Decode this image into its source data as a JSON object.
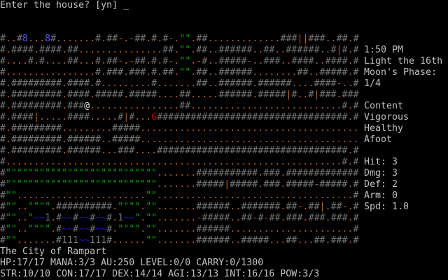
{
  "prompt": {
    "text": "Enter the house? [yn] ",
    "cursor": "_"
  },
  "sidebar": {
    "time": "1:50 PM",
    "date": "Light the 16th",
    "moon_label": "Moon's Phase:",
    "moon_value": "1/4",
    "status": [
      "Content",
      "Vigorous",
      "Healthy",
      "Afoot"
    ],
    "combat": [
      "Hit: 3",
      "Dmg: 3",
      "Def: 2",
      "Arm: 0",
      "Spd: 1.0"
    ]
  },
  "location": "The City of Rampart",
  "status_line_1": "HP:17/17 MANA:3/3 AU:250 LEVEL:0/0 CARRY:0/1300",
  "status_line_2": "STR:10/10 CON:17/17 DEX:14/14 AGI:13/13 INT:16/16 POW:3/3",
  "tile_colors": {
    "#": "#767676",
    ".": "#b8601c",
    "\"": "#00a800",
    "8": "#5a5aff",
    "|": "#b8601c",
    "-": "#b8601c",
    "@": "#e0e0e0",
    "G": "#b00000",
    "1": "#767676",
    "~": "#1a1ad0"
  },
  "map": [
    "#..#8...8#.......#.##-.-##.#.#-.\"\".##.............###||###..##.#",
    "#.####.####.##...............##.\"\".##..######..##..######..#|#.#",
    "#....#.#....##...#.##-.-##.#.#-.\"\".-#..#####-..###..####..####.#",
    "#................#.###.###.#.##.\"\".##..######........##..#####.#",
    "#.#########.####.#.........#.......##..######.######....####-..#",
    "#.#########.####.#####.#####....##.....######.#####|#..#|###.###",
    "#.#########.###@................##...........................#.#",
    "#.####|.....####.....#|#...G##################################.#",
    "#.#########.........#####.......................................",
    "#.#########.######..#####.......................................",
    "#.#########.######...###....##################################.#",
    "#............................................................#.#",
    "#\"\"\"\"\"\"\"\"\"\"\"\"\"\"\"\"\"\"\"\"\"\"\"\"\"\"\".......###########.###.#############",
    "#\"\"\"\"\"\"\"\"\"\"\"\"\"\"\"\"\"\"\"\"\"\"\"\"\"\"\".......#####|#####.###.#####-#####.#",
    "#\"\".......................\"\"...................................#",
    "#\"\"..\"\"\"\".##########.\"\"\"\".\"\".......######..#######.##-.##|.##-.#",
    "#\"\"..\"~~1.#~~#~~#~~#.1~~\".\"\".......-#####..##-#-##.###.###.###.#",
    "#\"\"..\"\"\"\".#~~#~~#~~#.\"\"\"\".\"\".......######......................#",
    "#\"\".......#111~~111#......\"\".......######..#####...##...##.###.#"
  ]
}
